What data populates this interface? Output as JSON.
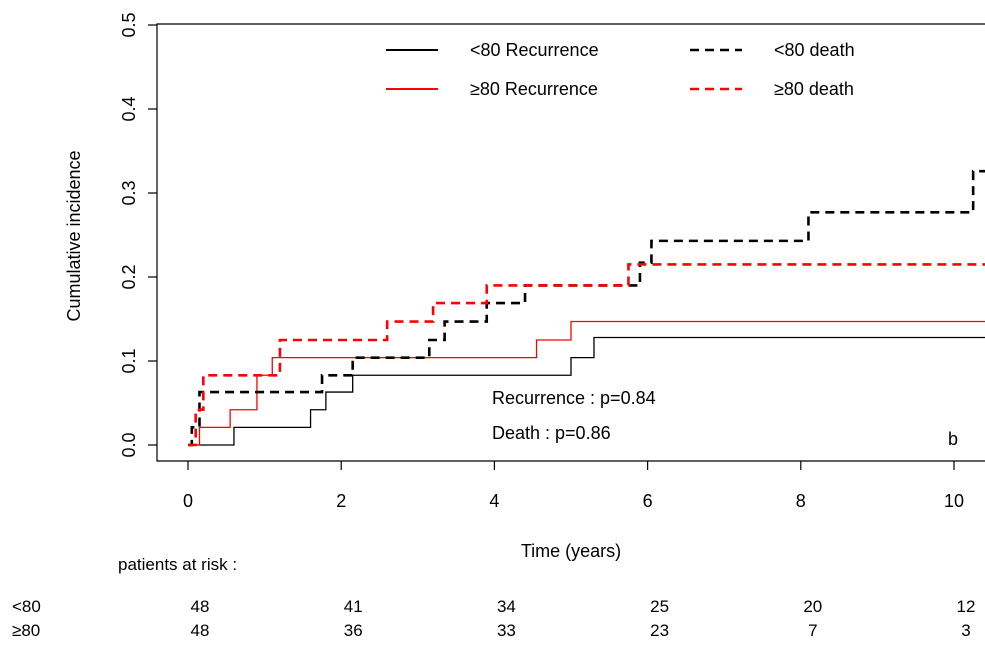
{
  "chart_data": {
    "type": "line",
    "step": true,
    "xlabel": "Time (years)",
    "ylabel": "Cumulative incidence",
    "xlim": [
      0,
      10.5
    ],
    "ylim": [
      0,
      0.5
    ],
    "xticks": [
      0,
      2,
      4,
      6,
      8,
      10
    ],
    "yticks": [
      0.0,
      0.1,
      0.2,
      0.3,
      0.4,
      0.5
    ],
    "xtick_labels": [
      "0",
      "2",
      "4",
      "6",
      "8",
      "10"
    ],
    "ytick_labels": [
      "0.0",
      "0.1",
      "0.2",
      "0.3",
      "0.4",
      "0.5"
    ],
    "legend_position": "top",
    "series": [
      {
        "name": "<80 Recurrence",
        "color": "#000000",
        "dash": "solid",
        "x": [
          0,
          0.6,
          1.6,
          1.8,
          2.15,
          5.0,
          5.3,
          10.5
        ],
        "y": [
          0,
          0.021,
          0.042,
          0.063,
          0.083,
          0.104,
          0.128,
          0.128
        ]
      },
      {
        "name": "≥80 Recurrence",
        "color": "#ff0000",
        "dash": "solid",
        "x": [
          0,
          0.15,
          0.55,
          0.9,
          1.1,
          4.55,
          5.0,
          10.5
        ],
        "y": [
          0,
          0.021,
          0.042,
          0.083,
          0.104,
          0.125,
          0.147,
          0.147
        ]
      },
      {
        "name": "<80 death",
        "color": "#000000",
        "dash": "dashed",
        "x": [
          0,
          0.05,
          0.15,
          0.9,
          1.75,
          2.15,
          3.15,
          3.35,
          3.9,
          4.4,
          5.9,
          6.05,
          8.1,
          10.25,
          10.5
        ],
        "y": [
          0,
          0.021,
          0.063,
          0.063,
          0.083,
          0.104,
          0.125,
          0.147,
          0.169,
          0.19,
          0.217,
          0.243,
          0.277,
          0.326,
          0.326
        ]
      },
      {
        "name": "≥80 death",
        "color": "#ff0000",
        "dash": "dashed",
        "x": [
          0,
          0.1,
          0.2,
          1.2,
          2.6,
          3.2,
          3.9,
          5.75,
          10.5
        ],
        "y": [
          0,
          0.042,
          0.083,
          0.125,
          0.147,
          0.169,
          0.19,
          0.215,
          0.215
        ]
      }
    ],
    "annotations": {
      "recurrence_p": "Recurrence : p=0.84",
      "death_p": "Death : p=0.86",
      "panel": "b"
    },
    "risk_table": {
      "title": "patients at risk :",
      "times": [
        0,
        2,
        4,
        6,
        8,
        10
      ],
      "rows": [
        {
          "label": "<80",
          "values": [
            "48",
            "41",
            "34",
            "25",
            "20",
            "12"
          ]
        },
        {
          "label": "≥80",
          "values": [
            "48",
            "36",
            "33",
            "23",
            "7",
            "3"
          ]
        }
      ]
    }
  }
}
